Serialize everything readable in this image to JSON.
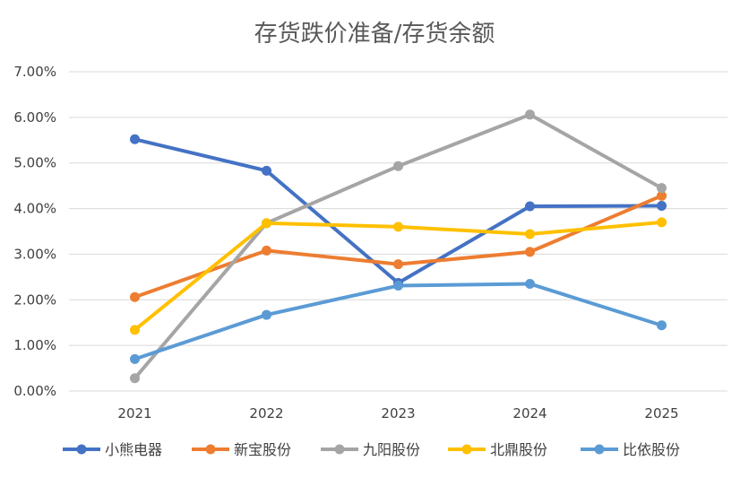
{
  "chart_data": {
    "type": "line",
    "title": "存货跌价准备/存货余额",
    "xlabel": "",
    "ylabel": "",
    "categories": [
      "2021",
      "2022",
      "2023",
      "2024",
      "2025"
    ],
    "ylim": [
      0,
      0.07
    ],
    "y_ticks": [
      "0.00%",
      "1.00%",
      "2.00%",
      "3.00%",
      "4.00%",
      "5.00%",
      "6.00%",
      "7.00%"
    ],
    "y_tick_values": [
      0,
      0.01,
      0.02,
      0.03,
      0.04,
      0.05,
      0.06,
      0.07
    ],
    "grid": true,
    "legend_position": "bottom",
    "series": [
      {
        "name": "小熊电器",
        "color": "#4472C4",
        "values": [
          0.0552,
          0.0483,
          0.0237,
          0.0405,
          0.0406
        ]
      },
      {
        "name": "新宝股份",
        "color": "#ED7D31",
        "values": [
          0.0206,
          0.0308,
          0.0278,
          0.0305,
          0.0428
        ]
      },
      {
        "name": "九阳股份",
        "color": "#A5A5A5",
        "values": [
          0.0028,
          0.0368,
          0.0493,
          0.0606,
          0.0445
        ]
      },
      {
        "name": "北鼎股份",
        "color": "#FFC000",
        "values": [
          0.0134,
          0.0368,
          0.036,
          0.0344,
          0.037
        ]
      },
      {
        "name": "比依股份",
        "color": "#5B9BD5",
        "values": [
          0.007,
          0.0167,
          0.0231,
          0.0235,
          0.0144
        ]
      }
    ]
  }
}
